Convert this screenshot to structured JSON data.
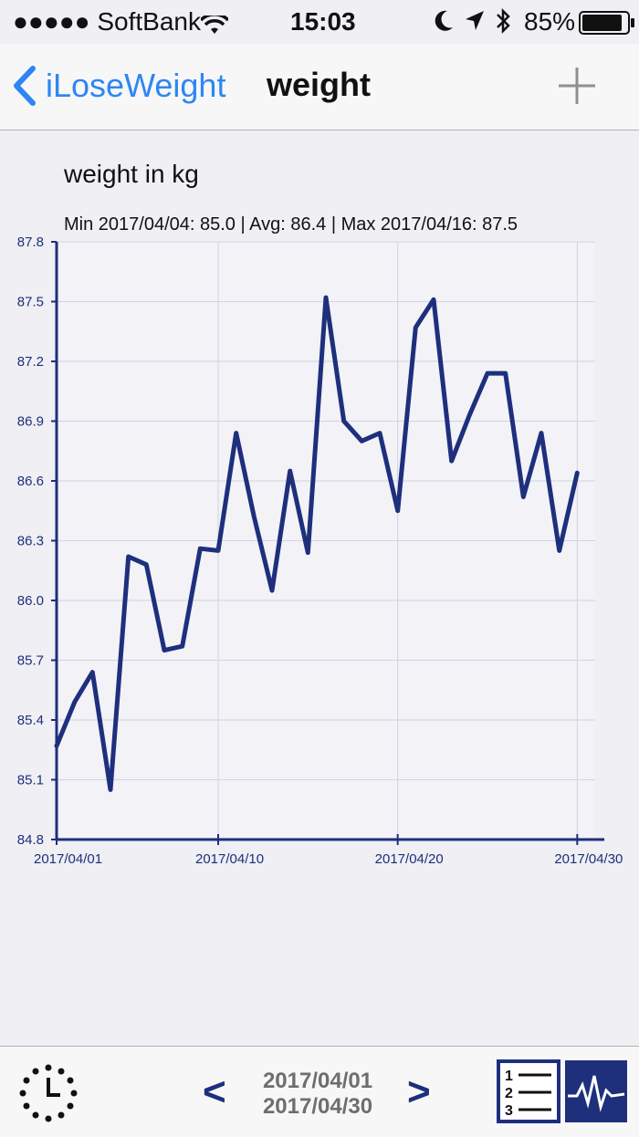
{
  "status": {
    "carrier": "●●●●● SoftBank",
    "time": "15:03",
    "battery": "85%"
  },
  "nav": {
    "back_label": "iLoseWeight",
    "title": "weight"
  },
  "chart_header": {
    "title": "weight in kg",
    "stats": "Min 2017/04/04: 85.0  |  Avg: 86.4  |  Max 2017/04/16: 87.5"
  },
  "toolbar": {
    "range_start": "2017/04/01",
    "range_end": "2017/04/30",
    "prev_label": "<",
    "next_label": ">"
  },
  "colors": {
    "accent": "#2f86f2",
    "chart_line": "#1e2f7c"
  },
  "chart_data": {
    "type": "line",
    "title": "weight in kg",
    "ylim": [
      84.8,
      87.8
    ],
    "yticks": [
      "84.8",
      "85.1",
      "85.4",
      "85.7",
      "86.0",
      "86.3",
      "86.6",
      "86.9",
      "87.2",
      "87.5",
      "87.8"
    ],
    "xlim": [
      "2017/04/01",
      "2017/04/31"
    ],
    "xticks": [
      "2017/04/01",
      "2017/04/10",
      "2017/04/20",
      "2017/04/30"
    ],
    "grid": true,
    "series": [
      {
        "x": [
          "2017/04/01",
          "2017/04/02",
          "2017/04/03",
          "2017/04/04",
          "2017/04/05",
          "2017/04/06",
          "2017/04/07",
          "2017/04/08",
          "2017/04/09",
          "2017/04/10",
          "2017/04/11",
          "2017/04/12",
          "2017/04/13",
          "2017/04/14",
          "2017/04/15",
          "2017/04/16",
          "2017/04/17",
          "2017/04/18",
          "2017/04/19",
          "2017/04/20",
          "2017/04/21",
          "2017/04/22",
          "2017/04/23",
          "2017/04/24",
          "2017/04/25",
          "2017/04/26",
          "2017/04/27",
          "2017/04/28",
          "2017/04/29",
          "2017/04/30"
        ],
        "values": [
          85.27,
          85.49,
          85.64,
          85.05,
          86.22,
          86.18,
          85.75,
          85.77,
          86.26,
          86.25,
          86.84,
          86.42,
          86.05,
          86.65,
          86.24,
          87.52,
          86.9,
          86.8,
          86.84,
          86.45,
          87.37,
          87.51,
          86.7,
          86.93,
          87.14,
          87.14,
          86.52,
          86.84,
          86.25,
          86.64
        ]
      }
    ]
  }
}
